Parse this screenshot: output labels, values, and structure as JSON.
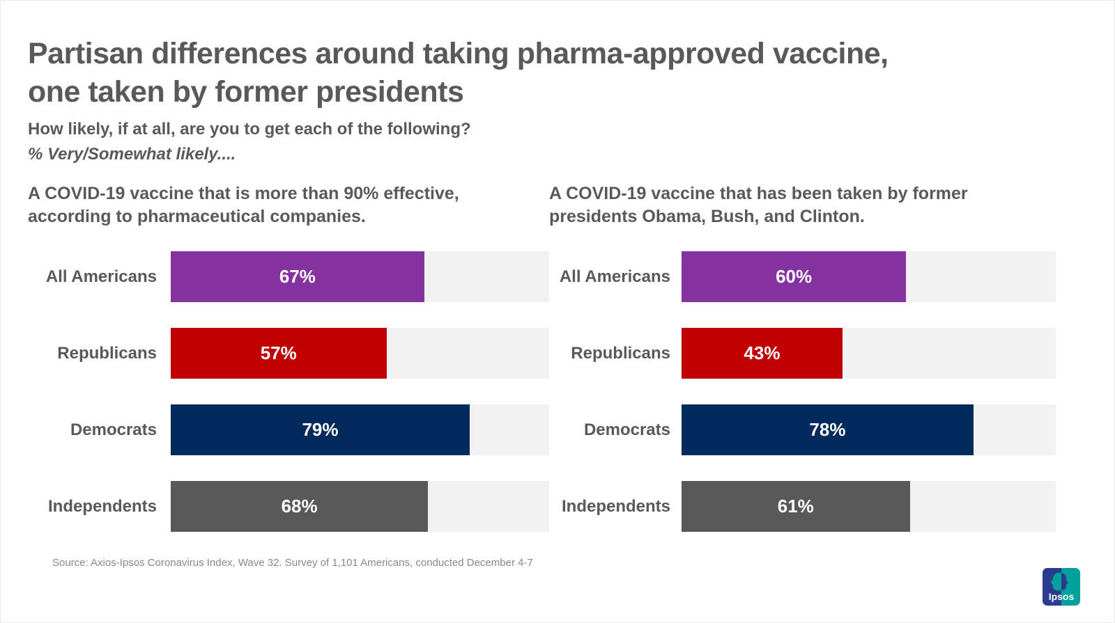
{
  "header": {
    "title_line1": "Partisan differences around taking pharma-approved vaccine,",
    "title_line2": "one taken by former presidents",
    "question": "How likely, if at all, are you to get each of the following?",
    "measure": "% Very/Somewhat likely...."
  },
  "chart_data": [
    {
      "type": "bar",
      "orientation": "horizontal",
      "title": "A COVID-19 vaccine that is more than 90% effective, according to pharmaceutical companies.",
      "categories": [
        "All Americans",
        "Republicans",
        "Democrats",
        "Independents"
      ],
      "values": [
        67,
        57,
        79,
        68
      ],
      "value_labels": [
        "67%",
        "57%",
        "79%",
        "68%"
      ],
      "xlim": [
        0,
        100
      ],
      "grid": false,
      "legend": "none",
      "bar_colors": [
        "#84329F",
        "#C00000",
        "#002A5C",
        "#595959"
      ],
      "track_color": "#F2F2F2"
    },
    {
      "type": "bar",
      "orientation": "horizontal",
      "title": "A COVID-19 vaccine that has been taken by former presidents Obama, Bush, and Clinton.",
      "categories": [
        "All Americans",
        "Republicans",
        "Democrats",
        "Independents"
      ],
      "values": [
        60,
        43,
        78,
        61
      ],
      "value_labels": [
        "60%",
        "43%",
        "78%",
        "61%"
      ],
      "xlim": [
        0,
        100
      ],
      "grid": false,
      "legend": "none",
      "bar_colors": [
        "#84329F",
        "#C00000",
        "#002A5C",
        "#595959"
      ],
      "track_color": "#F2F2F2"
    }
  ],
  "footer": {
    "source": "Source: Axios-Ipsos Coronavirus Index, Wave 32. Survey of 1,101 Americans, conducted December 4-7"
  },
  "logo": {
    "text": "Ipsos",
    "blue": "#2A3A8C",
    "teal": "#00A19A"
  },
  "colors": {
    "heading_text": "#595959",
    "category_text": "#595959",
    "value_text": "#FFFFFF",
    "source_text": "#888888",
    "purple": "#84329F",
    "red": "#C00000",
    "navy": "#002A5C",
    "gray": "#595959",
    "track": "#F2F2F2"
  }
}
